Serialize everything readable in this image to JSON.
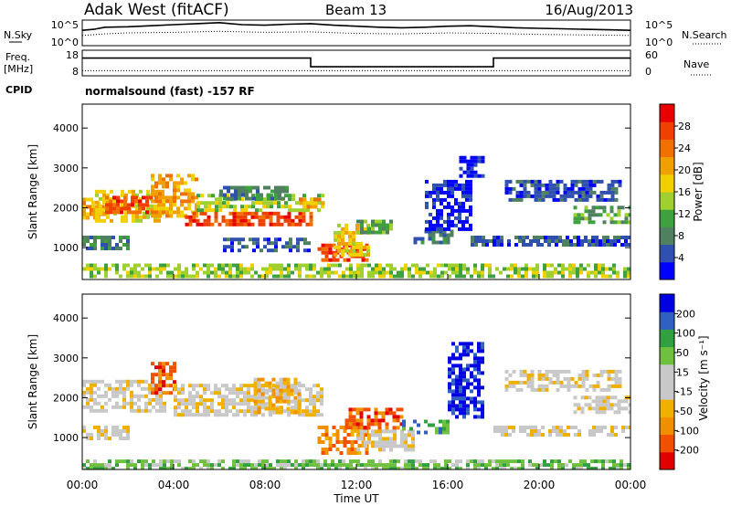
{
  "header": {
    "station": "Adak West (fitACF)",
    "beam": "Beam 13",
    "date": "16/Aug/2013"
  },
  "noise_panel": {
    "left_label": "N.Sky",
    "right_label": "N.Search",
    "left_ticks": [
      "10^5",
      "10^0"
    ],
    "right_ticks": [
      "10^5",
      "10^0"
    ]
  },
  "freq_panel": {
    "left_label_line1": "Freq.",
    "left_label_line2": "[MHz]",
    "right_label": "Nave",
    "left_ticks": [
      "18",
      "8"
    ],
    "right_ticks": [
      "60",
      "0"
    ]
  },
  "cpid": {
    "label": "CPID",
    "text": "normalsound (fast) -157 RF"
  },
  "colors": {
    "power": [
      "#0000ff",
      "#3050b0",
      "#4f8060",
      "#3fa040",
      "#a0d030",
      "#f0d000",
      "#f0a000",
      "#f07000",
      "#f04000",
      "#e80000"
    ],
    "velocity": [
      "#e00000",
      "#f05000",
      "#f09000",
      "#f0b000",
      "#c8c8c8",
      "#c8c8c8",
      "#70c040",
      "#30a040",
      "#3060c0",
      "#0000e0"
    ]
  },
  "chart_data": [
    {
      "type": "heatmap",
      "name": "power",
      "ylabel": "Slant Range [km]",
      "yticks": [
        "1000",
        "2000",
        "3000",
        "4000"
      ],
      "ylim": [
        200,
        4600
      ],
      "colorbar": {
        "label": "Power [dB]",
        "ticks": [
          "4",
          "8",
          "12",
          "16",
          "20",
          "24",
          "28"
        ],
        "range": [
          0,
          32
        ]
      },
      "bands": [
        {
          "t0": 0.0,
          "t1": 2.0,
          "r0": 950,
          "r1": 1300,
          "level": 2
        },
        {
          "t0": 0.0,
          "t1": 1.0,
          "r0": 1750,
          "r1": 2250,
          "level": 6
        },
        {
          "t0": 0.4,
          "t1": 3.6,
          "r0": 1700,
          "r1": 2450,
          "level": 5
        },
        {
          "t0": 1.0,
          "t1": 3.0,
          "r0": 1900,
          "r1": 2300,
          "level": 8
        },
        {
          "t0": 3.0,
          "t1": 5.0,
          "r0": 1750,
          "r1": 2850,
          "level": 6
        },
        {
          "t0": 4.5,
          "t1": 10.0,
          "r0": 1550,
          "r1": 1900,
          "level": 8
        },
        {
          "t0": 5.0,
          "t1": 10.5,
          "r0": 1900,
          "r1": 2350,
          "level": 4
        },
        {
          "t0": 6.0,
          "t1": 9.0,
          "r0": 2250,
          "r1": 2550,
          "level": 2
        },
        {
          "t0": 6.0,
          "t1": 10.0,
          "r0": 950,
          "r1": 1250,
          "level": 1
        },
        {
          "t0": 9.5,
          "t1": 10.6,
          "r0": 2000,
          "r1": 2250,
          "level": 6
        },
        {
          "t0": 10.3,
          "t1": 12.5,
          "r0": 650,
          "r1": 1100,
          "level": 8
        },
        {
          "t0": 11.0,
          "t1": 12.6,
          "r0": 850,
          "r1": 1600,
          "level": 5
        },
        {
          "t0": 12.0,
          "t1": 13.5,
          "r0": 1350,
          "r1": 1700,
          "level": 3
        },
        {
          "t0": 14.5,
          "t1": 16.2,
          "r0": 1100,
          "r1": 1450,
          "level": 2
        },
        {
          "t0": 16.5,
          "t1": 17.5,
          "r0": 2750,
          "r1": 3300,
          "level": 0
        },
        {
          "t0": 15.0,
          "t1": 17.0,
          "r0": 1500,
          "r1": 2700,
          "level": 0
        },
        {
          "t0": 17.0,
          "t1": 24.0,
          "r0": 1050,
          "r1": 1300,
          "level": 1
        },
        {
          "t0": 18.5,
          "t1": 23.5,
          "r0": 2150,
          "r1": 2700,
          "level": 1
        },
        {
          "t0": 21.5,
          "t1": 24.0,
          "r0": 1600,
          "r1": 2050,
          "level": 3
        },
        {
          "t0": 0.0,
          "t1": 24.0,
          "r0": 250,
          "r1": 600,
          "level": 4
        }
      ]
    },
    {
      "type": "heatmap",
      "name": "velocity",
      "ylabel": "Slant Range [km]",
      "yticks": [
        "1000",
        "2000",
        "3000",
        "4000"
      ],
      "ylim": [
        200,
        4600
      ],
      "xlabel": "Time UT",
      "xticks": [
        "00:00",
        "04:00",
        "08:00",
        "12:00",
        "16:00",
        "20:00",
        "00:00"
      ],
      "xlim": [
        0,
        24
      ],
      "colorbar": {
        "label": "Velocity [m s⁻¹]",
        "ticks": [
          "200",
          "100",
          "50",
          "15",
          "-15",
          "-50",
          "-100",
          "-200"
        ],
        "range": [
          -250,
          250
        ]
      },
      "bands": [
        {
          "t0": 0.0,
          "t1": 2.0,
          "r0": 950,
          "r1": 1300,
          "level": 4
        },
        {
          "t0": 0.0,
          "t1": 3.6,
          "r0": 1700,
          "r1": 2450,
          "level": 4
        },
        {
          "t0": 3.0,
          "t1": 4.0,
          "r0": 2100,
          "r1": 2900,
          "level": 1
        },
        {
          "t0": 4.0,
          "t1": 10.5,
          "r0": 1550,
          "r1": 2350,
          "level": 4
        },
        {
          "t0": 7.5,
          "t1": 9.5,
          "r0": 1600,
          "r1": 2500,
          "level": 3
        },
        {
          "t0": 10.3,
          "t1": 12.5,
          "r0": 650,
          "r1": 1300,
          "level": 2
        },
        {
          "t0": 12.0,
          "t1": 14.5,
          "r0": 700,
          "r1": 1200,
          "level": 4
        },
        {
          "t0": 11.5,
          "t1": 14.0,
          "r0": 1250,
          "r1": 1750,
          "level": 1
        },
        {
          "t0": 14.0,
          "t1": 16.0,
          "r0": 1100,
          "r1": 1450,
          "level": 7
        },
        {
          "t0": 16.0,
          "t1": 17.5,
          "r0": 1500,
          "r1": 3400,
          "level": 9
        },
        {
          "t0": 18.0,
          "t1": 24.0,
          "r0": 1050,
          "r1": 1300,
          "level": 4
        },
        {
          "t0": 18.5,
          "t1": 23.5,
          "r0": 2150,
          "r1": 2700,
          "level": 4
        },
        {
          "t0": 21.5,
          "t1": 24.0,
          "r0": 1600,
          "r1": 2050,
          "level": 4
        },
        {
          "t0": 0.0,
          "t1": 24.0,
          "r0": 250,
          "r1": 450,
          "level": 6
        }
      ]
    }
  ],
  "series_panels": {
    "noise": {
      "nsky": [
        [
          0.0,
          3.0
        ],
        [
          0.5,
          3.2
        ],
        [
          1.0,
          3.6
        ],
        [
          2.0,
          3.7
        ],
        [
          3.0,
          3.9
        ],
        [
          4.0,
          4.1
        ],
        [
          5.0,
          4.3
        ],
        [
          6.0,
          4.5
        ],
        [
          6.5,
          4.3
        ],
        [
          7.0,
          4.1
        ],
        [
          8.0,
          4.0
        ],
        [
          9.0,
          4.2
        ],
        [
          10.0,
          4.3
        ],
        [
          11.0,
          4.0
        ],
        [
          12.0,
          3.8
        ],
        [
          13.0,
          3.6
        ],
        [
          14.0,
          3.5
        ],
        [
          15.0,
          3.6
        ],
        [
          16.0,
          3.8
        ],
        [
          17.0,
          3.9
        ],
        [
          18.0,
          3.7
        ],
        [
          19.0,
          3.5
        ],
        [
          20.0,
          3.4
        ],
        [
          21.0,
          3.3
        ],
        [
          22.0,
          3.2
        ],
        [
          23.0,
          3.1
        ],
        [
          24.0,
          3.0
        ]
      ],
      "nsearch": [
        [
          0.0,
          2.0
        ],
        [
          1.0,
          2.3
        ],
        [
          2.0,
          2.5
        ],
        [
          4.0,
          2.6
        ],
        [
          6.0,
          2.8
        ],
        [
          8.0,
          2.6
        ],
        [
          10.0,
          2.7
        ],
        [
          12.0,
          2.4
        ],
        [
          14.0,
          2.3
        ],
        [
          16.0,
          2.5
        ],
        [
          18.0,
          2.4
        ],
        [
          20.0,
          2.2
        ],
        [
          22.0,
          2.1
        ],
        [
          24.0,
          2.0
        ]
      ]
    },
    "freq": {
      "freq": [
        [
          0.0,
          15.0
        ],
        [
          10.0,
          15.0
        ],
        [
          10.0,
          10.6
        ],
        [
          18.0,
          10.6
        ],
        [
          18.0,
          15.0
        ],
        [
          24.0,
          15.0
        ]
      ],
      "nave": [
        [
          0.0,
          12
        ],
        [
          24.0,
          12
        ]
      ]
    }
  }
}
